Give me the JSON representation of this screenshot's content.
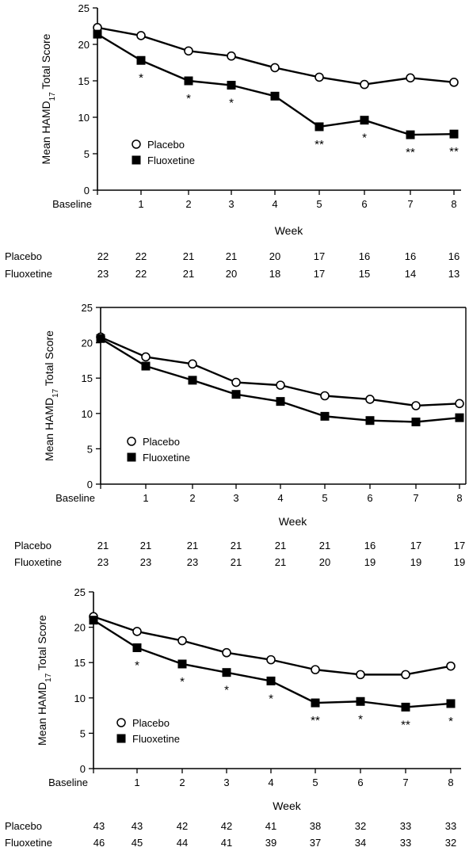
{
  "chart_data": [
    {
      "type": "line",
      "ylabel_main": "Mean HAMD",
      "ylabel_sub": "17",
      "ylabel_tail": " Total Score",
      "xlabel": "Week",
      "ylim": [
        0,
        25
      ],
      "yticks": [
        "0",
        "5",
        "10",
        "15",
        "20",
        "25"
      ],
      "categories": [
        "Baseline",
        "1",
        "2",
        "3",
        "4",
        "5",
        "6",
        "7",
        "8"
      ],
      "legend_position": "lower-left",
      "grid": false,
      "frame": "open",
      "series": [
        {
          "name": "Placebo",
          "marker": "open-circle",
          "values": [
            22.3,
            21.2,
            19.1,
            18.4,
            16.8,
            15.5,
            14.5,
            15.4,
            14.8
          ]
        },
        {
          "name": "Fluoxetine",
          "marker": "filled-square",
          "values": [
            21.4,
            17.8,
            15.0,
            14.4,
            12.9,
            8.7,
            9.6,
            7.6,
            7.7
          ]
        }
      ],
      "significance": [
        "",
        "*",
        "*",
        "*",
        "",
        "**",
        "*",
        "**",
        "**"
      ],
      "n_rows": [
        {
          "label": "Placebo",
          "values": [
            "22",
            "22",
            "21",
            "21",
            "20",
            "17",
            "16",
            "16",
            "16"
          ]
        },
        {
          "label": "Fluoxetine",
          "values": [
            "23",
            "22",
            "21",
            "20",
            "18",
            "17",
            "15",
            "14",
            "13"
          ]
        }
      ]
    },
    {
      "type": "line",
      "ylabel_main": "Mean HAMD",
      "ylabel_sub": "17",
      "ylabel_tail": " Total Score",
      "xlabel": "Week",
      "ylim": [
        0,
        25
      ],
      "yticks": [
        "0",
        "5",
        "10",
        "15",
        "20",
        "25"
      ],
      "categories": [
        "Baseline",
        "1",
        "2",
        "3",
        "4",
        "5",
        "6",
        "7",
        "8"
      ],
      "legend_position": "lower-left",
      "grid": false,
      "frame": "box",
      "series": [
        {
          "name": "Placebo",
          "marker": "open-circle",
          "values": [
            20.8,
            18.0,
            17.0,
            14.4,
            14.0,
            12.5,
            12.0,
            11.1,
            11.4
          ]
        },
        {
          "name": "Fluoxetine",
          "marker": "filled-square",
          "values": [
            20.6,
            16.7,
            14.7,
            12.7,
            11.7,
            9.6,
            9.0,
            8.8,
            9.4
          ]
        }
      ],
      "significance": [
        "",
        "",
        "",
        "",
        "",
        "",
        "",
        "",
        ""
      ],
      "n_rows": [
        {
          "label": "Placebo",
          "values": [
            "21",
            "21",
            "21",
            "21",
            "21",
            "21",
            "16",
            "17",
            "17"
          ]
        },
        {
          "label": "Fluoxetine",
          "values": [
            "23",
            "23",
            "23",
            "21",
            "21",
            "20",
            "19",
            "19",
            "19"
          ]
        }
      ]
    },
    {
      "type": "line",
      "ylabel_main": "Mean HAMD",
      "ylabel_sub": "17",
      "ylabel_tail": " Total Score",
      "xlabel": "Week",
      "ylim": [
        0,
        25
      ],
      "yticks": [
        "0",
        "5",
        "10",
        "15",
        "20",
        "25"
      ],
      "categories": [
        "Baseline",
        "1",
        "2",
        "3",
        "4",
        "5",
        "6",
        "7",
        "8"
      ],
      "legend_position": "lower-left",
      "grid": false,
      "frame": "open",
      "series": [
        {
          "name": "Placebo",
          "marker": "open-circle",
          "values": [
            21.5,
            19.4,
            18.1,
            16.4,
            15.4,
            14.0,
            13.3,
            13.3,
            14.5
          ]
        },
        {
          "name": "Fluoxetine",
          "marker": "filled-square",
          "values": [
            21.0,
            17.1,
            14.8,
            13.6,
            12.4,
            9.3,
            9.5,
            8.7,
            9.2
          ]
        }
      ],
      "significance": [
        "",
        "*",
        "*",
        "*",
        "*",
        "**",
        "*",
        "**",
        "*"
      ],
      "n_rows": [
        {
          "label": "Placebo",
          "values": [
            "43",
            "43",
            "42",
            "42",
            "41",
            "38",
            "32",
            "33",
            "33"
          ]
        },
        {
          "label": "Fluoxetine",
          "values": [
            "46",
            "45",
            "44",
            "41",
            "39",
            "37",
            "34",
            "33",
            "32"
          ]
        }
      ]
    }
  ]
}
